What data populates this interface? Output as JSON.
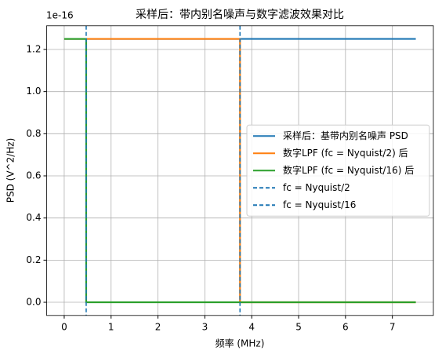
{
  "chart_data": {
    "type": "line",
    "title": "采样后：带内别名噪声与数字滤波效果对比",
    "xlabel": "频率 (MHz)",
    "ylabel": "PSD (V^2/Hz)",
    "offset_label": "1e-16",
    "xlim": [
      -0.375,
      7.875
    ],
    "ylim": [
      -0.0625,
      1.3125
    ],
    "xticks": [
      0,
      1,
      2,
      3,
      4,
      5,
      6,
      7
    ],
    "yticks": [
      {
        "value": 0,
        "label": "0.0"
      },
      {
        "value": 0.2,
        "label": "0.2"
      },
      {
        "value": 0.4,
        "label": "0.4"
      },
      {
        "value": 0.6,
        "label": "0.6"
      },
      {
        "value": 0.8,
        "label": "0.8"
      },
      {
        "value": 1,
        "label": "1.0"
      },
      {
        "value": 1.2,
        "label": "1.2"
      }
    ],
    "grid": true,
    "legend": "center right",
    "series": [
      {
        "name": "采样后：基带内别名噪声 PSD",
        "color": "#1f77b4",
        "x": [
          0,
          7.5
        ],
        "values": [
          1.25,
          1.25
        ]
      },
      {
        "name": "数字LPF (fc = Nyquist/2) 后",
        "color": "#ff7f0e",
        "x": [
          0,
          3.75,
          3.75,
          7.5
        ],
        "values": [
          1.25,
          1.25,
          0,
          0
        ]
      },
      {
        "name": "数字LPF (fc = Nyquist/16) 后",
        "color": "#2ca02c",
        "x": [
          0,
          0.46875,
          0.46875,
          7.5
        ],
        "values": [
          1.25,
          1.25,
          0,
          0
        ]
      }
    ],
    "vlines": [
      {
        "name": "fc = Nyquist/2",
        "color": "#1f77b4",
        "x": 3.75
      },
      {
        "name": "fc = Nyquist/16",
        "color": "#1f77b4",
        "x": 0.46875
      }
    ]
  }
}
